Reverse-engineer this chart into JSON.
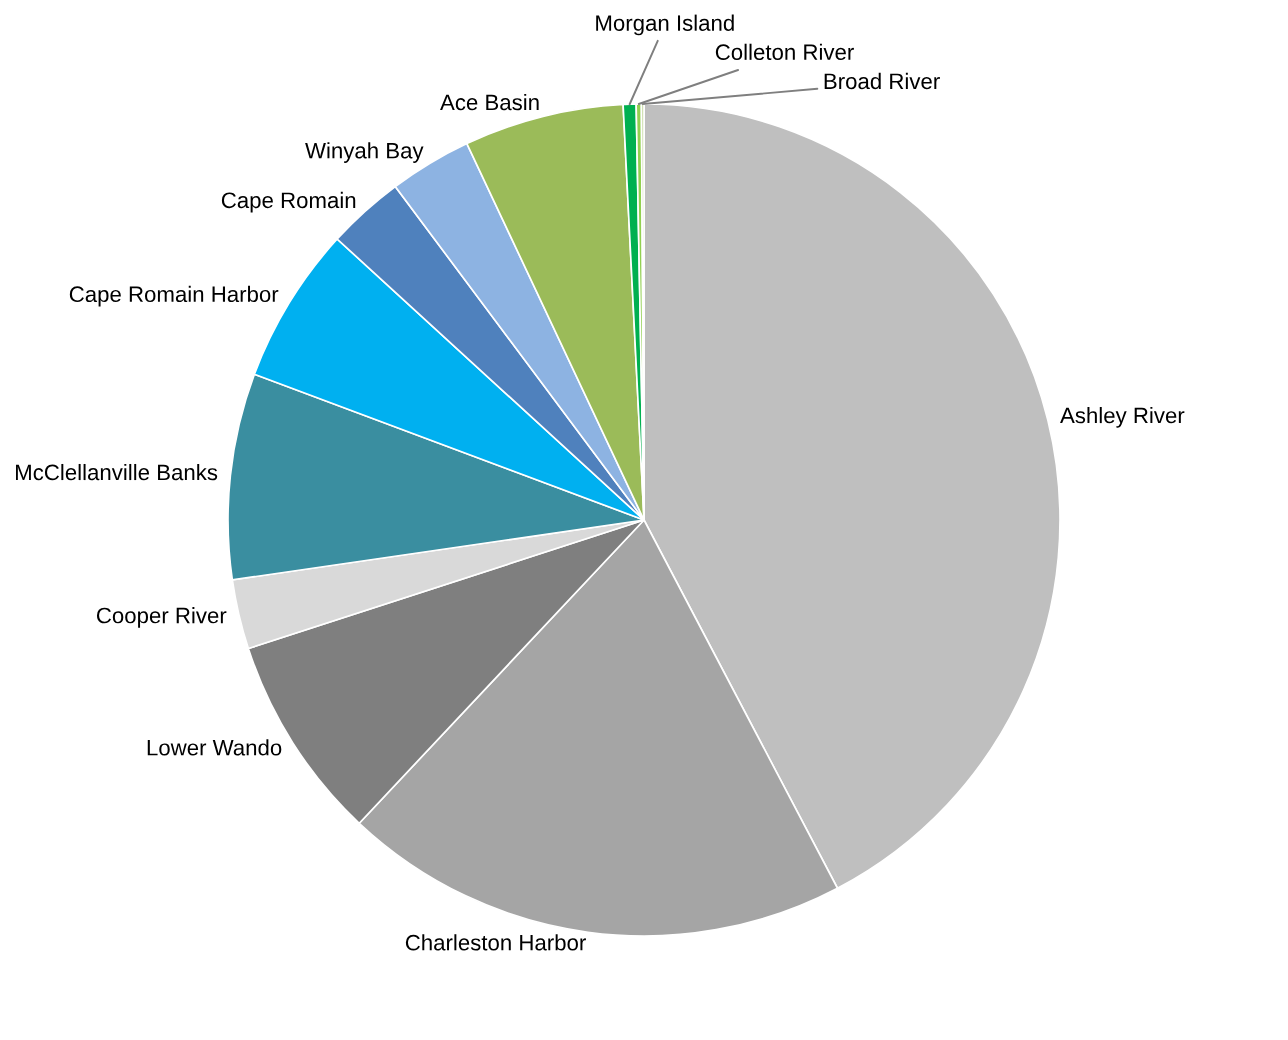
{
  "chart_data": {
    "type": "pie",
    "categories": [
      "Ashley River",
      "Charleston Harbor",
      "Lower Wando",
      "Cooper River",
      "McClellanville Banks",
      "Cape Romain Harbor",
      "Cape Romain",
      "Winyah Bay",
      "Ace Basin",
      "Morgan Island",
      "Colleton River",
      "Broad River"
    ],
    "values": [
      42.3,
      19.7,
      8,
      2.7,
      8,
      6.1,
      3,
      3.2,
      6.2,
      0.5,
      0.2,
      0.1
    ],
    "colors": [
      "#bfbfbf",
      "#a5a5a5",
      "#7f7f7f",
      "#d9d9d9",
      "#3a8ea0",
      "#00b0f0",
      "#4f81bd",
      "#8db3e2",
      "#9bbb59",
      "#00b050",
      "#92d050",
      "#c3d69b"
    ]
  }
}
